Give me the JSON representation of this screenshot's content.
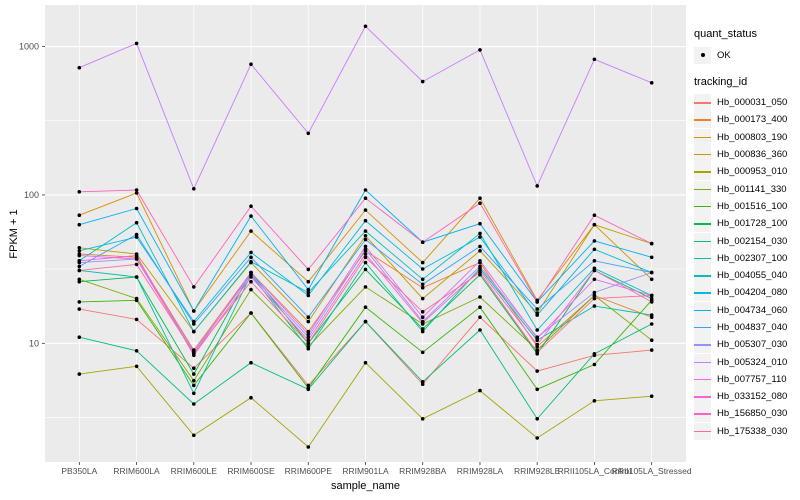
{
  "chart_data": {
    "type": "line",
    "title": "",
    "xlabel": "sample_name",
    "ylabel": "FPKM + 1",
    "y_scale": "log10",
    "y_ticks": [
      10,
      100,
      1000
    ],
    "ylim_log10": [
      0.2,
      3.28
    ],
    "grid": true,
    "legend_position": "right",
    "categories": [
      "PB350LA",
      "RRIM600LA",
      "RRIM600LE",
      "RRIM600SE",
      "RRIM600PE",
      "RRIM901LA",
      "RRIM928BA",
      "RRIM928LA",
      "RRIM928LE",
      "RRII105LA_Control",
      "RRII105LA_Stressed"
    ],
    "series": [
      {
        "name": "Hb_000031_050",
        "color": "#F8766D",
        "values": [
          17,
          14.5,
          6.8,
          16,
          5.2,
          14,
          5.3,
          15,
          6.5,
          8.3,
          9
        ]
      },
      {
        "name": "Hb_000173_400",
        "color": "#EA8331",
        "values": [
          40,
          38,
          9,
          30,
          12,
          42,
          23.7,
          35,
          9.5,
          21,
          15
        ]
      },
      {
        "name": "Hb_000803_190",
        "color": "#D89000",
        "values": [
          73,
          103,
          16.5,
          57,
          26,
          79,
          35,
          95,
          19.5,
          63,
          27
        ]
      },
      {
        "name": "Hb_000836_360",
        "color": "#C09B00",
        "values": [
          44,
          40,
          12,
          35,
          14,
          53,
          20,
          42,
          16,
          63,
          47
        ]
      },
      {
        "name": "Hb_000953_010",
        "color": "#A3A500",
        "values": [
          6.2,
          7,
          2.4,
          4.3,
          2.0,
          7.4,
          3.1,
          4.8,
          2.3,
          4.1,
          4.4
        ]
      },
      {
        "name": "Hb_001141_330",
        "color": "#7CAE00",
        "values": [
          27,
          20,
          5.6,
          23,
          9.5,
          24,
          13.5,
          20.5,
          9,
          21,
          10.5
        ]
      },
      {
        "name": "Hb_001516_100",
        "color": "#39B600",
        "values": [
          19,
          19.5,
          5.2,
          16,
          5,
          17.5,
          8.7,
          17.5,
          4.9,
          7.2,
          19.5
        ]
      },
      {
        "name": "Hb_001728_100",
        "color": "#00BB4E",
        "values": [
          26,
          28,
          6.2,
          30,
          10,
          31.5,
          12.5,
          29,
          8.5,
          31,
          20
        ]
      },
      {
        "name": "Hb_002154_030",
        "color": "#00BF7D",
        "values": [
          11,
          8.9,
          3.9,
          7.4,
          4.9,
          14,
          5.5,
          12.3,
          3.1,
          8.5,
          13.5
        ]
      },
      {
        "name": "Hb_002307_100",
        "color": "#00C1A3",
        "values": [
          31,
          28,
          4.6,
          29,
          9.2,
          35,
          12,
          32,
          10.5,
          17.8,
          15.5
        ]
      },
      {
        "name": "Hb_004055_040",
        "color": "#00BFC4",
        "values": [
          36,
          65,
          12,
          35.5,
          22,
          57,
          27,
          55,
          12.3,
          32,
          21
        ]
      },
      {
        "name": "Hb_004204_080",
        "color": "#00BAE0",
        "values": [
          42,
          52,
          14,
          41,
          21,
          67,
          31.7,
          52,
          15.5,
          43,
          30
        ]
      },
      {
        "name": "Hb_004734_060",
        "color": "#00B0F6",
        "values": [
          63,
          81,
          16.5,
          72,
          23,
          108,
          48,
          64,
          19,
          49,
          38
        ]
      },
      {
        "name": "Hb_004837_040",
        "color": "#35A2FF",
        "values": [
          33,
          54,
          13.5,
          38,
          15,
          50,
          25,
          45,
          17,
          36,
          30
        ]
      },
      {
        "name": "Hb_005307_030",
        "color": "#9590FF",
        "values": [
          35,
          37,
          8.8,
          29,
          11,
          43,
          14,
          33,
          11,
          22,
          30
        ]
      },
      {
        "name": "Hb_005324_010",
        "color": "#C77CFF",
        "values": [
          720,
          1050,
          110,
          760,
          260,
          1370,
          580,
          950,
          115,
          820,
          570
        ]
      },
      {
        "name": "Hb_007757_110",
        "color": "#E76BF3",
        "values": [
          39,
          37,
          8.5,
          30,
          11.5,
          45,
          15,
          36,
          10.8,
          27,
          21
        ]
      },
      {
        "name": "Hb_033152_080",
        "color": "#FA62DB",
        "values": [
          36,
          39,
          8.3,
          28,
          10.5,
          40,
          13.7,
          31,
          9.8,
          31,
          19
        ]
      },
      {
        "name": "Hb_156850_030",
        "color": "#FF62BC",
        "values": [
          105,
          108,
          24,
          84,
          31.5,
          95,
          48,
          88,
          19,
          73,
          47
        ]
      },
      {
        "name": "Hb_175338_030",
        "color": "#FF6A98",
        "values": [
          31,
          34,
          8.6,
          26,
          10,
          38,
          16.3,
          30,
          8.7,
          20,
          21
        ]
      }
    ]
  },
  "legend": {
    "quant_status": {
      "title": "quant_status",
      "items": [
        {
          "label": "OK",
          "symbol": "point",
          "color": "#000000"
        }
      ]
    },
    "tracking_id": {
      "title": "tracking_id"
    }
  },
  "colors": {
    "panel_bg": "#EBEBEB",
    "grid": "#FFFFFF",
    "axis_text": "#4D4D4D",
    "tick_mark": "#333333",
    "point": "#000000",
    "legend_key_bg": "#F2F2F2"
  }
}
